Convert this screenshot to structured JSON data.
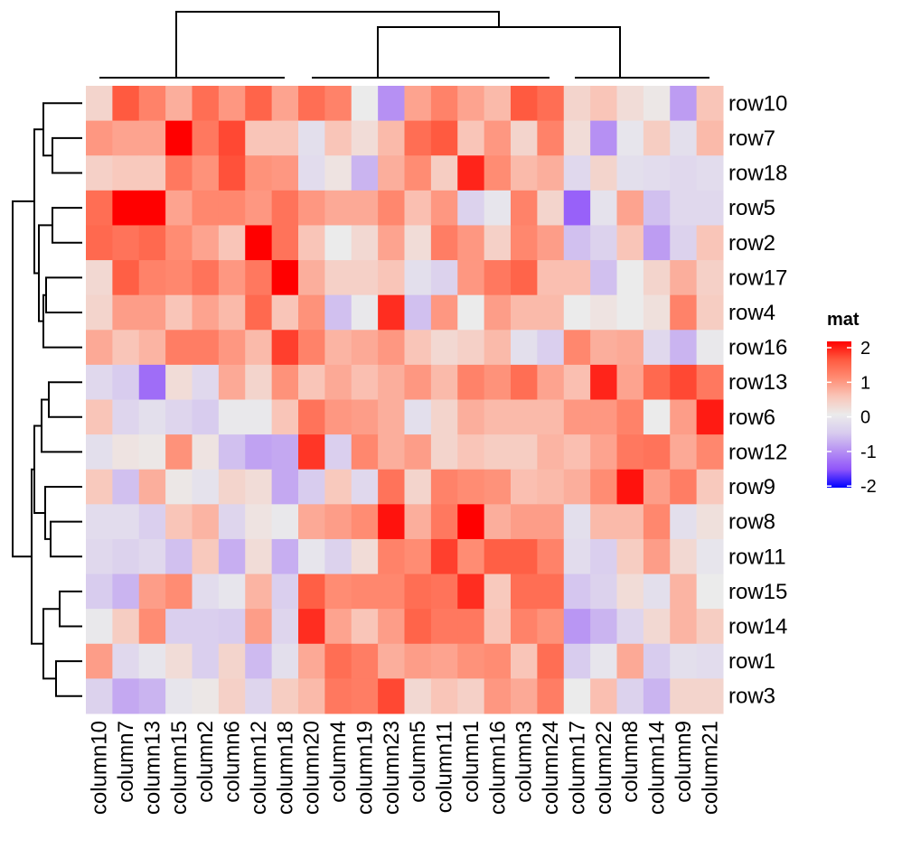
{
  "chart_data": {
    "type": "heatmap",
    "title": "",
    "rows": [
      "row10",
      "row7",
      "row18",
      "row5",
      "row2",
      "row17",
      "row4",
      "row16",
      "row13",
      "row6",
      "row12",
      "row9",
      "row8",
      "row11",
      "row15",
      "row14",
      "row1",
      "row3"
    ],
    "columns": [
      "column10",
      "column7",
      "column13",
      "column15",
      "column2",
      "column6",
      "column12",
      "column18",
      "column20",
      "column4",
      "column19",
      "column23",
      "column5",
      "column11",
      "column1",
      "column16",
      "column3",
      "column24",
      "column17",
      "column22",
      "column8",
      "column14",
      "column9",
      "column21"
    ],
    "values": [
      [
        0.3,
        1.5,
        1.1,
        0.7,
        1.3,
        0.9,
        1.4,
        0.8,
        1.3,
        1.1,
        0.0,
        -1.0,
        0.8,
        1.1,
        0.8,
        0.6,
        1.5,
        1.3,
        0.3,
        0.5,
        0.2,
        0.05,
        -0.9,
        0.5
      ],
      [
        0.9,
        0.8,
        0.8,
        2.1,
        1.2,
        1.6,
        0.5,
        0.5,
        -0.2,
        0.5,
        0.2,
        0.6,
        1.3,
        1.5,
        0.5,
        0.9,
        0.3,
        1.1,
        0.2,
        -1.0,
        -0.1,
        0.4,
        -0.2,
        0.6
      ],
      [
        0.35,
        0.45,
        0.45,
        1.2,
        0.95,
        1.55,
        0.95,
        0.9,
        -0.25,
        0.1,
        -0.7,
        0.7,
        1.0,
        0.4,
        1.8,
        1.0,
        0.6,
        0.7,
        -0.3,
        0.3,
        -0.2,
        -0.25,
        -0.3,
        -0.25
      ],
      [
        1.3,
        2.0,
        2.0,
        0.8,
        1.05,
        1.05,
        0.9,
        1.25,
        0.9,
        0.75,
        0.75,
        1.05,
        0.55,
        0.9,
        -0.4,
        -0.1,
        1.1,
        0.3,
        -1.4,
        -0.15,
        0.8,
        -0.6,
        -0.3,
        -0.3
      ],
      [
        1.35,
        1.25,
        1.35,
        1.0,
        0.8,
        0.5,
        2.0,
        1.25,
        0.5,
        0.0,
        0.25,
        0.8,
        0.2,
        1.15,
        0.9,
        0.35,
        1.05,
        0.85,
        -0.6,
        -0.4,
        0.5,
        -0.9,
        -0.4,
        0.5
      ],
      [
        0.25,
        1.45,
        1.1,
        1.05,
        1.25,
        0.9,
        1.2,
        2.0,
        0.7,
        0.35,
        0.35,
        0.5,
        -0.2,
        -0.4,
        0.9,
        1.2,
        1.4,
        0.55,
        0.55,
        -0.6,
        0.0,
        0.3,
        0.7,
        0.35
      ],
      [
        0.3,
        0.85,
        0.85,
        0.5,
        0.8,
        0.6,
        1.35,
        0.5,
        0.95,
        -0.6,
        -0.05,
        1.75,
        -0.6,
        0.9,
        0.0,
        0.85,
        0.6,
        0.6,
        0.0,
        0.1,
        0.0,
        0.15,
        1.1,
        0.4
      ],
      [
        0.75,
        0.5,
        0.65,
        1.15,
        1.15,
        0.9,
        0.6,
        1.65,
        1.1,
        0.65,
        0.75,
        0.9,
        0.5,
        0.25,
        0.35,
        0.6,
        -0.2,
        -0.45,
        1.05,
        0.7,
        0.75,
        -0.3,
        -0.7,
        -0.05
      ],
      [
        -0.3,
        -0.5,
        -1.3,
        0.2,
        -0.3,
        0.75,
        0.3,
        0.95,
        0.5,
        0.75,
        0.55,
        0.7,
        0.9,
        0.6,
        1.1,
        0.95,
        1.3,
        0.8,
        0.55,
        1.8,
        0.8,
        1.35,
        1.6,
        1.2
      ],
      [
        0.5,
        -0.35,
        -0.2,
        -0.35,
        -0.5,
        -0.05,
        -0.05,
        0.5,
        1.25,
        0.9,
        0.85,
        0.7,
        -0.2,
        0.3,
        0.7,
        0.6,
        0.6,
        0.6,
        0.9,
        0.9,
        1.1,
        0.0,
        0.85,
        1.85
      ],
      [
        -0.2,
        0.1,
        0.05,
        0.95,
        0.1,
        -0.6,
        -0.85,
        -0.8,
        1.7,
        -0.45,
        1.05,
        0.7,
        0.85,
        0.3,
        0.5,
        0.4,
        0.4,
        0.65,
        0.55,
        0.8,
        1.2,
        1.25,
        0.75,
        1.05
      ],
      [
        0.45,
        -0.6,
        0.7,
        0.05,
        -0.15,
        0.3,
        0.2,
        -0.8,
        -0.5,
        0.45,
        -0.3,
        1.25,
        0.3,
        1.1,
        1.0,
        0.95,
        0.55,
        0.6,
        0.7,
        1.0,
        1.9,
        0.85,
        1.15,
        0.45
      ],
      [
        -0.25,
        -0.25,
        -0.45,
        0.5,
        0.65,
        -0.35,
        0.1,
        -0.05,
        0.75,
        0.85,
        1.0,
        1.9,
        0.7,
        1.2,
        2.0,
        0.7,
        0.85,
        0.85,
        -0.2,
        0.6,
        0.6,
        1.05,
        -0.2,
        0.15
      ],
      [
        -0.3,
        -0.4,
        -0.3,
        -0.6,
        0.45,
        -0.75,
        0.2,
        -0.75,
        -0.1,
        -0.4,
        0.2,
        1.1,
        1.0,
        1.65,
        1.0,
        1.45,
        1.45,
        1.1,
        -0.25,
        -0.45,
        0.4,
        0.85,
        0.25,
        -0.1
      ],
      [
        -0.5,
        -0.7,
        0.85,
        1.0,
        -0.25,
        -0.1,
        0.65,
        -0.45,
        1.45,
        1.0,
        1.05,
        1.05,
        1.3,
        1.25,
        1.75,
        0.45,
        1.3,
        1.3,
        -0.55,
        -0.4,
        0.2,
        -0.2,
        0.65,
        0.0
      ],
      [
        -0.05,
        0.4,
        1.0,
        -0.45,
        -0.45,
        -0.5,
        0.85,
        -0.35,
        1.75,
        0.8,
        0.5,
        0.85,
        1.4,
        1.2,
        1.2,
        0.5,
        1.1,
        0.95,
        -0.95,
        -0.7,
        -0.35,
        0.25,
        0.65,
        0.4
      ],
      [
        0.85,
        -0.3,
        -0.1,
        0.2,
        -0.45,
        0.3,
        -0.65,
        -0.2,
        0.75,
        1.3,
        1.15,
        0.7,
        0.85,
        0.8,
        0.95,
        1.0,
        0.5,
        1.3,
        -0.5,
        -0.1,
        0.75,
        -0.5,
        -0.2,
        -0.25
      ],
      [
        -0.4,
        -0.8,
        -0.7,
        -0.1,
        0.05,
        0.35,
        -0.35,
        0.4,
        0.6,
        1.2,
        1.15,
        1.6,
        0.25,
        0.5,
        0.35,
        0.9,
        0.75,
        1.15,
        0.0,
        0.55,
        -0.4,
        -0.7,
        0.3,
        0.3
      ]
    ],
    "color_scale": {
      "min": -2,
      "mid": 0,
      "max": 2,
      "low": "#0000FF",
      "midColor": "#EBEBEB",
      "high": "#FF0000"
    },
    "legend": {
      "title": "mat",
      "ticks": [
        "2",
        "1",
        "0",
        "-1",
        "-2"
      ],
      "placement": "right"
    },
    "row_dendrogram": true,
    "column_dendrogram": true
  }
}
